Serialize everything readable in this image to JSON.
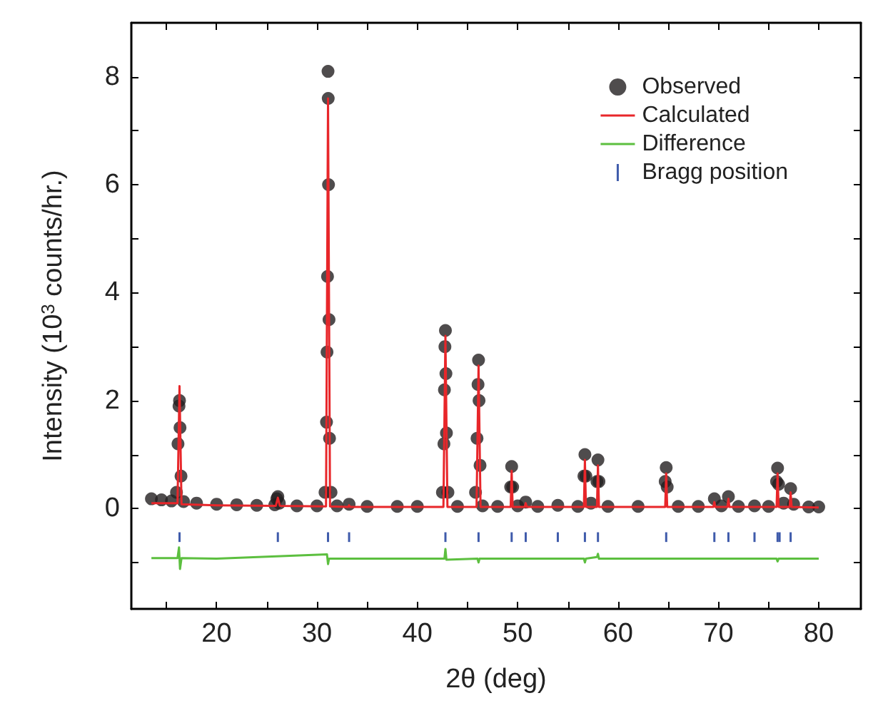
{
  "chart_data": {
    "type": "scatter",
    "xlabel": "2θ (deg)",
    "ylabel": "Intensity (10$^{3}$ counts/hr.)",
    "xlim": [
      11.5,
      84.2
    ],
    "ylim": [
      -1.86,
      9.0
    ],
    "xticks": [
      {
        "value": 15,
        "label": null
      },
      20,
      {
        "value": 25,
        "label": null
      },
      30,
      {
        "value": 35,
        "label": null
      },
      40,
      {
        "value": 45,
        "label": null
      },
      50,
      {
        "value": 55,
        "label": null
      },
      60,
      {
        "value": 65,
        "label": null
      },
      70,
      {
        "value": 75,
        "label": null
      },
      80
    ],
    "yticks": [
      {
        "value": -1,
        "label": null
      },
      0,
      {
        "value": 1,
        "label": null
      },
      2,
      {
        "value": 3,
        "label": null
      },
      4,
      {
        "value": 5,
        "label": null
      },
      6,
      {
        "value": 7,
        "label": null
      },
      8
    ],
    "grid": false,
    "legend": "top right",
    "series": [
      {
        "name": "Observed",
        "marker": "circle",
        "color": "#231f20",
        "x": [
          13.5,
          14.5,
          15.5,
          16.0,
          16.15,
          16.25,
          16.3,
          16.35,
          16.45,
          16.7,
          18,
          20,
          22,
          24,
          25.8,
          26.0,
          26.1,
          26.25,
          28,
          30,
          30.8,
          30.95,
          31.0,
          31.05,
          31.1,
          31.12,
          31.15,
          31.2,
          31.25,
          31.4,
          32,
          33.2,
          35,
          38,
          40,
          42.5,
          42.65,
          42.7,
          42.75,
          42.8,
          42.85,
          42.9,
          43.05,
          44,
          45.8,
          45.95,
          46.05,
          46.1,
          46.15,
          46.25,
          46.5,
          48,
          49.3,
          49.4,
          49.5,
          50,
          50.8,
          52,
          54,
          56,
          56.6,
          56.7,
          56.8,
          57.3,
          57.9,
          58.0,
          58.1,
          59,
          62,
          64.7,
          64.8,
          64.9,
          66,
          68,
          69.6,
          70.3,
          71.0,
          72,
          73.6,
          75,
          75.8,
          75.9,
          76.0,
          76.5,
          77.2,
          77.5,
          79,
          80
        ],
        "values": [
          0.18,
          0.16,
          0.14,
          0.3,
          1.2,
          1.9,
          2.0,
          1.5,
          0.6,
          0.13,
          0.1,
          0.08,
          0.07,
          0.06,
          0.07,
          0.18,
          0.22,
          0.1,
          0.05,
          0.05,
          0.3,
          1.6,
          2.9,
          4.3,
          8.1,
          7.6,
          6.0,
          3.5,
          1.3,
          0.3,
          0.05,
          0.08,
          0.04,
          0.04,
          0.04,
          0.3,
          1.2,
          2.2,
          3.0,
          3.3,
          2.5,
          1.4,
          0.3,
          0.04,
          0.3,
          1.3,
          2.3,
          2.75,
          2.0,
          0.8,
          0.05,
          0.04,
          0.4,
          0.78,
          0.4,
          0.05,
          0.12,
          0.04,
          0.06,
          0.04,
          0.6,
          1.0,
          0.6,
          0.1,
          0.5,
          0.9,
          0.5,
          0.04,
          0.04,
          0.5,
          0.76,
          0.4,
          0.04,
          0.04,
          0.18,
          0.05,
          0.22,
          0.04,
          0.05,
          0.04,
          0.5,
          0.75,
          0.45,
          0.1,
          0.37,
          0.08,
          0.03,
          0.03
        ]
      },
      {
        "name": "Calculated",
        "type": "line",
        "color": "#e8262a",
        "marker": "none",
        "x": [
          13.5,
          16.1,
          16.3,
          16.5,
          20,
          25.9,
          26.1,
          26.3,
          30.9,
          31.1,
          31.3,
          33.1,
          33.2,
          33.3,
          42.6,
          42.8,
          43.0,
          45.9,
          46.1,
          46.3,
          49.3,
          49.4,
          49.5,
          50.7,
          50.8,
          50.9,
          56.6,
          56.7,
          56.8,
          57.9,
          58.0,
          58.1,
          64.7,
          64.8,
          64.9,
          69.5,
          69.6,
          69.7,
          70.9,
          71.0,
          71.1,
          75.8,
          75.9,
          76.0,
          77.1,
          77.2,
          77.3,
          80
        ],
        "values": [
          0.1,
          0.1,
          2.27,
          0.08,
          0.06,
          0.05,
          0.2,
          0.05,
          0.04,
          7.6,
          0.04,
          0.03,
          0.06,
          0.03,
          0.03,
          3.2,
          0.03,
          0.03,
          2.65,
          0.03,
          0.03,
          0.7,
          0.03,
          0.03,
          0.1,
          0.03,
          0.03,
          0.9,
          0.03,
          0.03,
          0.8,
          0.03,
          0.03,
          0.65,
          0.03,
          0.03,
          0.12,
          0.03,
          0.03,
          0.18,
          0.03,
          0.03,
          0.65,
          0.03,
          0.03,
          0.3,
          0.03,
          0.02
        ]
      },
      {
        "name": "Difference",
        "type": "line",
        "color": "#5cbf3f",
        "marker": "none",
        "x": [
          13.5,
          16.1,
          16.25,
          16.35,
          16.5,
          20,
          31.0,
          31.1,
          31.2,
          42.7,
          42.8,
          42.9,
          46.0,
          46.1,
          46.2,
          56.6,
          56.7,
          56.8,
          57.9,
          58.0,
          58.1,
          75.8,
          75.9,
          76.0,
          80
        ],
        "values": [
          -0.92,
          -0.92,
          -0.72,
          -1.12,
          -0.92,
          -0.93,
          -0.85,
          -1.03,
          -0.93,
          -0.93,
          -0.75,
          -0.95,
          -0.93,
          -1.0,
          -0.93,
          -0.93,
          -1.0,
          -0.93,
          -0.9,
          -0.84,
          -0.93,
          -0.93,
          -0.98,
          -0.93,
          -0.93
        ]
      },
      {
        "name": "Bragg position",
        "type": "bar",
        "color": "#3f5bab",
        "base": [
          -0.62,
          -0.62,
          -0.62,
          -0.62,
          -0.62,
          -0.62,
          -0.62,
          -0.62,
          -0.62,
          -0.62,
          -0.62,
          -0.62,
          -0.62,
          -0.62,
          -0.62,
          -0.62,
          -0.62,
          -0.62
        ],
        "x": [
          16.3,
          26.1,
          31.1,
          33.2,
          42.8,
          46.1,
          49.4,
          50.8,
          54.0,
          56.7,
          58.0,
          64.8,
          69.6,
          71.0,
          73.6,
          75.9,
          76.1,
          77.2
        ],
        "values": [
          0.18,
          0.18,
          0.18,
          0.18,
          0.18,
          0.18,
          0.18,
          0.18,
          0.18,
          0.18,
          0.18,
          0.18,
          0.18,
          0.18,
          0.18,
          0.18,
          0.18,
          0.18
        ]
      }
    ]
  }
}
